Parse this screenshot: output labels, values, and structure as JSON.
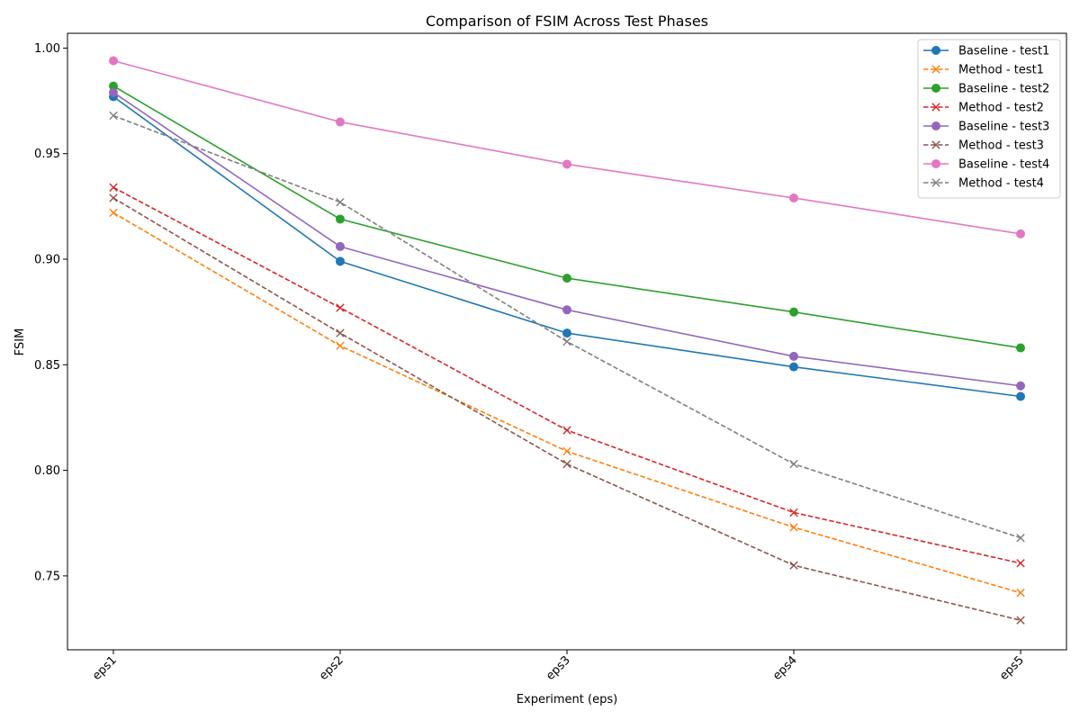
{
  "chart_data": {
    "type": "line",
    "title": "Comparison of FSIM Across Test Phases",
    "xlabel": "Experiment (eps)",
    "ylabel": "FSIM",
    "categories": [
      "eps1",
      "eps2",
      "eps3",
      "eps4",
      "eps5"
    ],
    "ylim": [
      0.715,
      1.007
    ],
    "yticks": [
      "0.75",
      "0.80",
      "0.85",
      "0.90",
      "0.95",
      "1.00"
    ],
    "grid": false,
    "legend_position": "top-right",
    "series": [
      {
        "name": "Baseline - test1",
        "values": [
          0.977,
          0.899,
          0.865,
          0.849,
          0.835
        ],
        "color": "#1f77b4",
        "style": "solid",
        "marker": "circle"
      },
      {
        "name": "Method - test1",
        "values": [
          0.922,
          0.859,
          0.809,
          0.773,
          0.742
        ],
        "color": "#ff7f0e",
        "style": "dashed",
        "marker": "x"
      },
      {
        "name": "Baseline - test2",
        "values": [
          0.982,
          0.919,
          0.891,
          0.875,
          0.858
        ],
        "color": "#2ca02c",
        "style": "solid",
        "marker": "circle"
      },
      {
        "name": "Method - test2",
        "values": [
          0.934,
          0.877,
          0.819,
          0.78,
          0.756
        ],
        "color": "#d62728",
        "style": "dashed",
        "marker": "x"
      },
      {
        "name": "Baseline - test3",
        "values": [
          0.979,
          0.906,
          0.876,
          0.854,
          0.84
        ],
        "color": "#9467bd",
        "style": "solid",
        "marker": "circle"
      },
      {
        "name": "Method - test3",
        "values": [
          0.929,
          0.865,
          0.803,
          0.755,
          0.729
        ],
        "color": "#8c564b",
        "style": "dashed",
        "marker": "x"
      },
      {
        "name": "Baseline - test4",
        "values": [
          0.994,
          0.965,
          0.945,
          0.929,
          0.912
        ],
        "color": "#e377c2",
        "style": "solid",
        "marker": "circle"
      },
      {
        "name": "Method - test4",
        "values": [
          0.968,
          0.927,
          0.861,
          0.803,
          0.768
        ],
        "color": "#7f7f7f",
        "style": "dashed",
        "marker": "x"
      }
    ]
  }
}
